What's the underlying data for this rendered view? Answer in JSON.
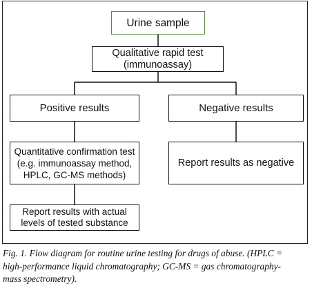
{
  "nodes": {
    "urine_sample": "Urine sample",
    "qualitative_test": [
      "Qualitative rapid test",
      "(immunoassay)"
    ],
    "positive_results": "Positive results",
    "negative_results": "Negative results",
    "quantitative_test": [
      "Quantitative confirmation test",
      "(e.g. immunoassay method,",
      "HPLC, GC-MS methods)"
    ],
    "report_negative": "Report results as negative",
    "report_positive": [
      "Report results with actual",
      "levels of tested substance"
    ]
  },
  "caption": [
    "Fig. 1. Flow diagram for routine urine testing for drugs of abuse. (HPLC =",
    "high-performance liquid chromatography; GC-MS = gas chromatography-",
    "mass spectrometry)."
  ],
  "colors": {
    "urine_box_border": "#5f8a3a",
    "box_border": "#111111"
  }
}
